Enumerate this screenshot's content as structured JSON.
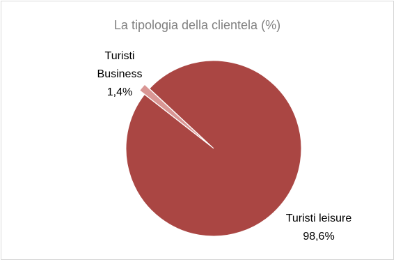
{
  "chart_data": {
    "type": "pie",
    "title": "La tipologia della clientela (%)",
    "slices": [
      {
        "label": "Turisti Business",
        "value": 1.4,
        "value_label": "1,4%",
        "color": "#d99694"
      },
      {
        "label": "Turisti leisure",
        "value": 98.6,
        "value_label": "98,6%",
        "color": "#aa4643"
      }
    ]
  }
}
